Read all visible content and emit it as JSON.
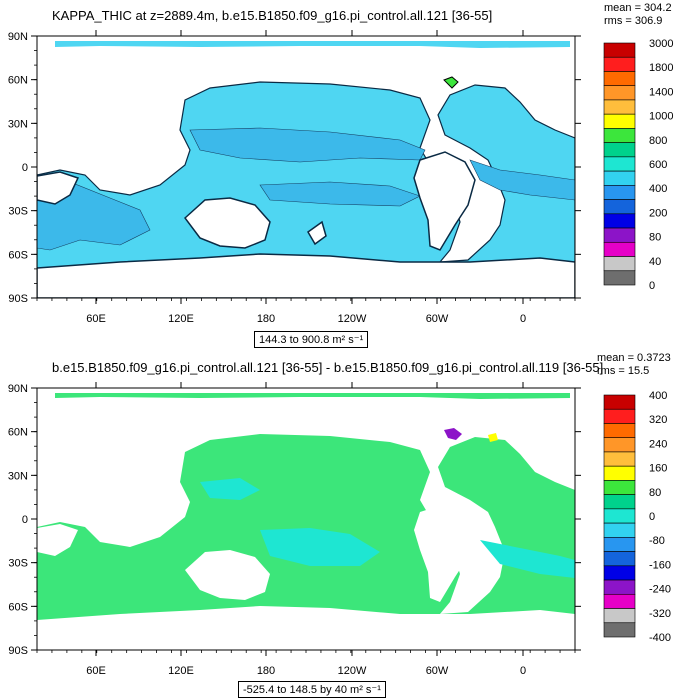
{
  "chart_data": [
    {
      "type": "heatmap",
      "title": "KAPPA_THIC at z=2889.4m, b.e15.B1850.f09_g16.pi_control.all.121 [36-55]",
      "stats": {
        "mean": "mean = 304.2",
        "rms": "rms = 306.9"
      },
      "range_label": "144.3 to 900.8 m² s⁻¹",
      "x_ticks": [
        "60E",
        "120E",
        "180",
        "120W",
        "60W",
        "0"
      ],
      "y_ticks": [
        "90N",
        "60N",
        "30N",
        "0",
        "30S",
        "60S",
        "90S"
      ],
      "colorbar_labels": [
        "3000",
        "1800",
        "1400",
        "1000",
        "800",
        "600",
        "400",
        "200",
        "80",
        "40",
        "0"
      ],
      "colorbar_colors": [
        "#c80000",
        "#ff1e1e",
        "#ff6a00",
        "#ff9628",
        "#ffbe3c",
        "#ffff00",
        "#3ce63c",
        "#00d28c",
        "#1ee6d2",
        "#32d2f0",
        "#2896f0",
        "#1464dc",
        "#0000e6",
        "#8c14c8",
        "#e600c8",
        "#c8c8c8",
        "#6e6e6e"
      ],
      "dominant_color": "#4fd6f2"
    },
    {
      "type": "heatmap",
      "title": "b.e15.B1850.f09_g16.pi_control.all.121 [36-55] - b.e15.B1850.f09_g16.pi_control.all.119 [36-55]",
      "stats": {
        "mean": "mean = 0.3723",
        "rms": "rms = 15.5"
      },
      "range_label": "-525.4 to 148.5 by 40 m² s⁻¹",
      "x_ticks": [
        "60E",
        "120E",
        "180",
        "120W",
        "60W",
        "0"
      ],
      "y_ticks": [
        "90N",
        "60N",
        "30N",
        "0",
        "30S",
        "60S",
        "90S"
      ],
      "colorbar_labels": [
        "400",
        "320",
        "240",
        "160",
        "80",
        "0",
        "-80",
        "-160",
        "-240",
        "-320",
        "-400"
      ],
      "colorbar_colors": [
        "#c80000",
        "#ff1e1e",
        "#ff6a00",
        "#ff9628",
        "#ffbe3c",
        "#ffff00",
        "#3ce63c",
        "#00d28c",
        "#1ee6d2",
        "#32d2f0",
        "#2896f0",
        "#1464dc",
        "#0000e6",
        "#8c14c8",
        "#e600c8",
        "#c8c8c8",
        "#6e6e6e"
      ],
      "dominant_color": "#3ce67a"
    }
  ]
}
